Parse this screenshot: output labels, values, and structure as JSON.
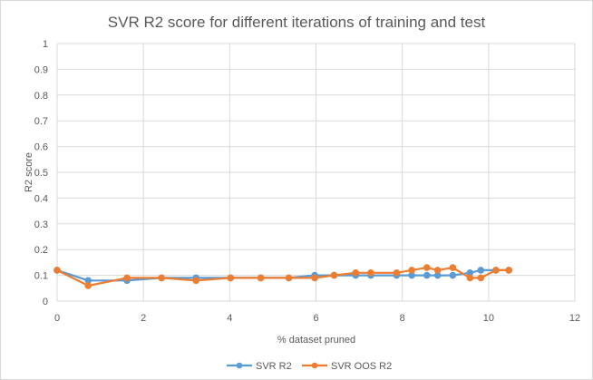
{
  "chart_data": {
    "type": "scatter",
    "title": "SVR R2 score for different iterations of training and test",
    "xlabel": "% dataset pruned",
    "ylabel": "R2 score",
    "xlim": [
      0,
      12
    ],
    "ylim": [
      0,
      1
    ],
    "x_ticks": [
      "0",
      "2",
      "4",
      "6",
      "8",
      "10",
      "12"
    ],
    "y_ticks": [
      "0",
      "0.1",
      "0.2",
      "0.3",
      "0.4",
      "0.5",
      "0.6",
      "0.7",
      "0.8",
      "0.9",
      "1"
    ],
    "grid": true,
    "legend_position": "bottom",
    "series": [
      {
        "name": "SVR R2",
        "color": "#5b9bd5",
        "points": [
          [
            0,
            0.12
          ],
          [
            0.72,
            0.08
          ],
          [
            1.62,
            0.08
          ],
          [
            2.42,
            0.09
          ],
          [
            3.22,
            0.09
          ],
          [
            4.02,
            0.09
          ],
          [
            4.72,
            0.09
          ],
          [
            5.37,
            0.09
          ],
          [
            5.97,
            0.1
          ],
          [
            6.42,
            0.1
          ],
          [
            6.92,
            0.1
          ],
          [
            7.27,
            0.1
          ],
          [
            7.87,
            0.1
          ],
          [
            8.22,
            0.1
          ],
          [
            8.57,
            0.1
          ],
          [
            8.82,
            0.1
          ],
          [
            9.17,
            0.1
          ],
          [
            9.57,
            0.11
          ],
          [
            9.82,
            0.12
          ],
          [
            10.17,
            0.12
          ],
          [
            10.47,
            0.12
          ]
        ]
      },
      {
        "name": "SVR OOS R2",
        "color": "#ed7d31",
        "points": [
          [
            0,
            0.12
          ],
          [
            0.72,
            0.06
          ],
          [
            1.62,
            0.09
          ],
          [
            2.42,
            0.09
          ],
          [
            3.22,
            0.08
          ],
          [
            4.02,
            0.09
          ],
          [
            4.72,
            0.09
          ],
          [
            5.37,
            0.09
          ],
          [
            5.97,
            0.09
          ],
          [
            6.42,
            0.1
          ],
          [
            6.92,
            0.11
          ],
          [
            7.27,
            0.11
          ],
          [
            7.87,
            0.11
          ],
          [
            8.22,
            0.12
          ],
          [
            8.57,
            0.13
          ],
          [
            8.82,
            0.12
          ],
          [
            9.17,
            0.13
          ],
          [
            9.57,
            0.09
          ],
          [
            9.82,
            0.09
          ],
          [
            10.17,
            0.12
          ],
          [
            10.47,
            0.12
          ]
        ]
      }
    ]
  }
}
